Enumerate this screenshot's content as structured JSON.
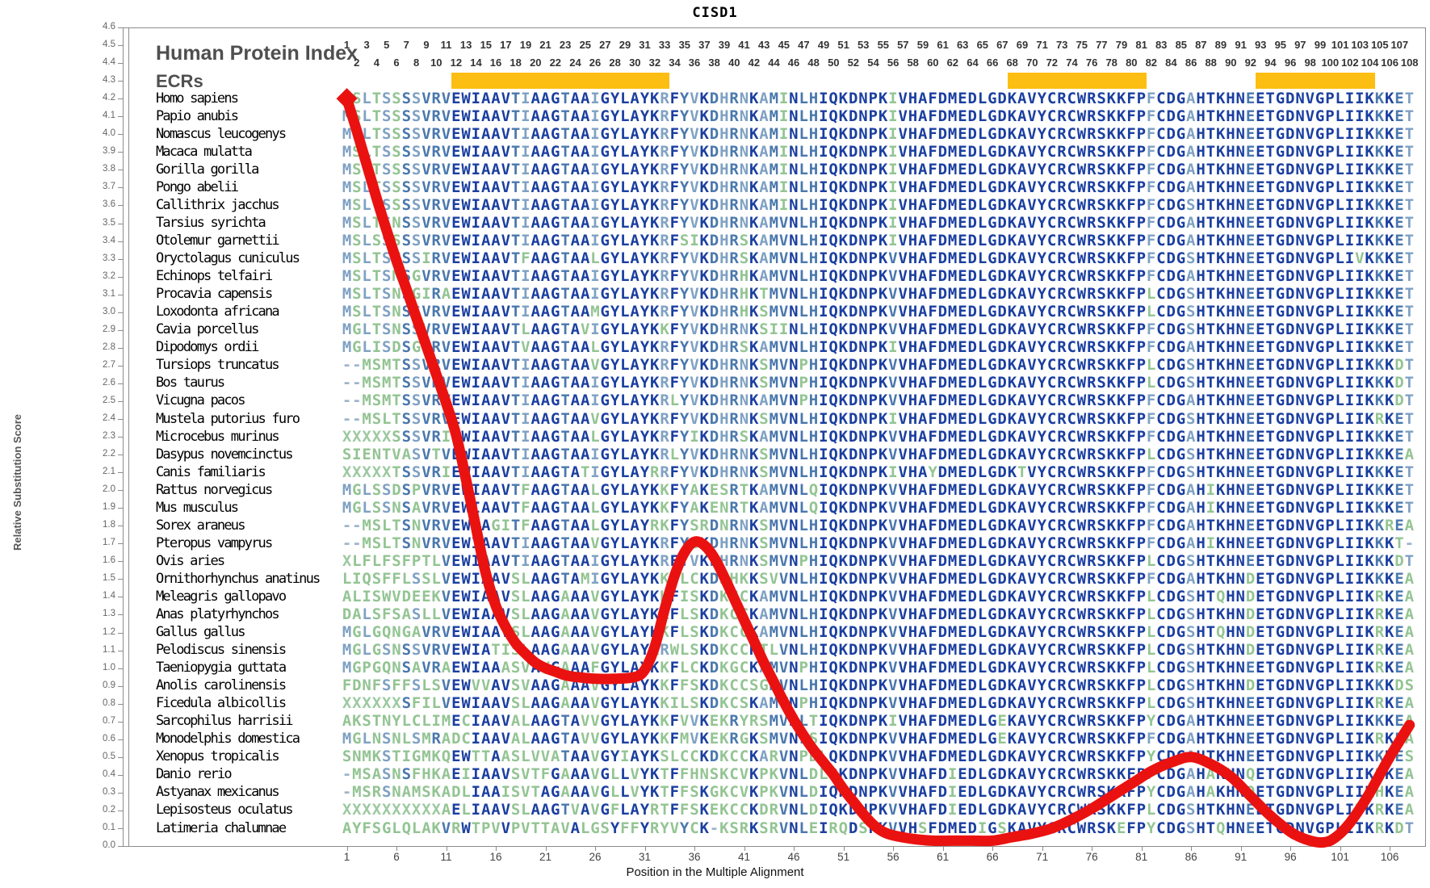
{
  "title": "CISD1",
  "header": {
    "human_protein_index": "Human Protein Index",
    "ecrs_label": "ECRs"
  },
  "y_axis": {
    "label": "Relative Substitution Score",
    "min": 0.0,
    "max": 4.6,
    "step": 0.1
  },
  "x_axis": {
    "label": "Position in the Multiple Alignment",
    "ticks": [
      1,
      6,
      11,
      16,
      21,
      26,
      31,
      36,
      41,
      46,
      51,
      56,
      61,
      66,
      71,
      76,
      81,
      86,
      91,
      96,
      101,
      106
    ]
  },
  "top_ruler": {
    "start": 1,
    "end": 108
  },
  "ecr_regions": [
    {
      "start": 12,
      "end": 33
    },
    {
      "start": 68,
      "end": 81
    },
    {
      "start": 93,
      "end": 104
    }
  ],
  "colors": {
    "ecr_bar": "#FCBE12",
    "curve": "#EA1210",
    "conserved_high": "#1B3FA0",
    "conserved_mid": "#4A78AD",
    "conserved_low": "#7FA1C3",
    "variable": "#93C493",
    "unknown_x": "#9CC9A0",
    "gap": "#9DB4C9",
    "frame": "#8C8C8C"
  },
  "alignment": {
    "length": 108,
    "species": [
      {
        "name": "Homo sapiens",
        "score": 4.2,
        "sequence": "MSLTSSSSVRVEWIAAVTIAAGTAAIGYLAYKRFYVKDHRNKAMINLHIQKDNPKIVHAFDMEDLGDKAVYCRCWRSKKFPFCDGAHTKHNEETGDNVGPLIIKKKET"
      },
      {
        "name": "Papio anubis",
        "score": 4.1,
        "sequence": "MSLTSSSSVRVEWIAAVTIAAGTAAIGYLAYKRFYVKDHRNKAMINLHIQKDNPKIVHAFDMEDLGDKAVYCRCWRSKKFPFCDGAHTKHNEETGDNVGPLIIKKKET"
      },
      {
        "name": "Nomascus leucogenys",
        "score": 4.0,
        "sequence": "MSLTSSSSVRVEWIAAVTIAAGTAAIGYLAYKRFYVKDHRNKAMINLHIQKDNPKIVHAFDMEDLGDKAVYCRCWRSKKFPFCDGAHTKHNEETGDNVGPLIIKKKET"
      },
      {
        "name": "Macaca mulatta",
        "score": 3.9,
        "sequence": "MSLTSSSSVRVEWIAAVTIAAGTAAIGYLAYKRFYVKDHRNKAMINLHIQKDNPKIVHAFDMEDLGDKAVYCRCWRSKKFPFCDGAHTKHNEETGDNVGPLIIKKKET"
      },
      {
        "name": "Gorilla gorilla",
        "score": 3.8,
        "sequence": "MSLTSSSSVRVEWIAAVTIAAGTAAIGYLAYKRFYVKDHRNKAMINLHIQKDNPKIVHAFDMEDLGDKAVYCRCWRSKKFPFCDGAHTKHNEETGDNVGPLIIKKKET"
      },
      {
        "name": "Pongo abelii",
        "score": 3.7,
        "sequence": "MSLTSSSSVRVEWIAAVTIAAGTAAIGYLAYKRFYVKDHRNKAMINLHIQKDNPKIVHAFDMEDLGDKAVYCRCWRSKKFPFCDGAHTKHNEETGDNVGPLIIKKKET"
      },
      {
        "name": "Callithrix jacchus",
        "score": 3.6,
        "sequence": "MSLTSSSSVRVEWIAAVTIAAGTAAIGYLAYKRFYVKDHRNKAMINLHIQKDNPKIVHAFDMEDLGDKAVYCRCWRSKKFPFCDGSHTKHNEETGDNVGPLIIKKKET"
      },
      {
        "name": "Tarsius syrichta",
        "score": 3.5,
        "sequence": "MSLTSNSSVRVEWIAAVTIAAGTAAIGYLAYKRFYVKDHRNKAMVNLHIQKDNPKIVHAFDMEDLGDKAVYCRCWRSKKFPFCDGAHTKHNEETGDNVGPLIIKKKET"
      },
      {
        "name": "Otolemur garnettii",
        "score": 3.4,
        "sequence": "MSLSSSSSVRVEWIAAVTIAAGTAAIGYLAYKRFSIKDHRSKAMVNLHIQKDNPKIVHAFDMEDLGDKAVYCRCWRSKKFPFCDGAHTKHNEETGDNVGPLIIKKKET"
      },
      {
        "name": "Oryctolagus cuniculus",
        "score": 3.3,
        "sequence": "MSLTSNSSIRVEWIAAVTFAAGTAALGYLAYKRFYVKDHRSKAMVNLHIQKDNPKVVHAFDMEDLGDKAVYCRCWRSKKFPFCDGSHTKHNEETGDNVGPLIVKKKET"
      },
      {
        "name": "Echinops telfairi",
        "score": 3.2,
        "sequence": "MSLTSNSGVRVEWIAAVTIAAGTAAIGYLAYKRFYVKDHRHKAMVNLHIQKDNPKVVHAFDMEDLGDKAVYCRCWRSKKFPFCDGAHTKHNEETGDNVGPLIIKKKET"
      },
      {
        "name": "Procavia capensis",
        "score": 3.1,
        "sequence": "MSLTSNSGIRAEWIAAVTIAAGTAAIGYLAYKRFYVKDHRHKTMVNLHIQKDNPKVVHAFDMEDLGDKAVYCRCWRSKKFPLCDGSHTKHNEETGDNVGPLIIKKKET"
      },
      {
        "name": "Loxodonta africana",
        "score": 3.0,
        "sequence": "MSLTSNSSVRVEWIAAVTIAAGTAAMGYLAYKRFYVKDHRHKSMVNLHIQKDNPKVVHAFDMEDLGDKAVYCRCWRSKKFPLCDGSHTKHNEETGDNVGPLIIKKKET"
      },
      {
        "name": "Cavia porcellus",
        "score": 2.9,
        "sequence": "MGLTSNSSVRVEWIAAVTLAAGTAVIGYLAYKKFYVKDHRNKSIINLHIQKDNPKVVHAFDMEDLGDKAVYCRCWRSKKFPFCDGSHTKHNEETGDNVGPLIIKKKET"
      },
      {
        "name": "Dipodomys ordii",
        "score": 2.8,
        "sequence": "MGLISDSGLRVEWIAAVTVAAGTAALGYLAYKRFYVKDHRSKAMVNLHIQKDNPKIVHAFDMEDLGDKAVYCRCWRSKKFPFCDGAHTKHNEETGDNVGPLIIKKKET"
      },
      {
        "name": "Tursiops truncatus",
        "score": 2.7,
        "sequence": "--MSMTSSVRVEWIAAVTIAAGTAAVGYLAYKRFYVKDHRNKSMVNPHIQKDNPKVVHAFDMEDLGDKAVYCRCWRSKKFPLCDGSHTKHNEETGDNVGPLIIKKKDT"
      },
      {
        "name": "Bos taurus",
        "score": 2.6,
        "sequence": "--MSMTSSVRVEWIAAVTIAAGTAAIGYLAYKRFYVKDHRNKSMVNPHIQKDNPKVVHAFDMEDLGDKAVYCRCWRSKKFPLCDGSHTKHNEETGDNVGPLIIKKKDT"
      },
      {
        "name": "Vicugna pacos",
        "score": 2.5,
        "sequence": "--MSMTSSVRVEWIAAVTIAAGTAAIGYLAYKRLYVKDHRNKAMVNPHIQKDNPKVVHAFDMEDLGDKAVYCRCWRSKKFPFCDGAHTKHNEETGDNVGPLIIKKKDT"
      },
      {
        "name": "Mustela putorius furo",
        "score": 2.4,
        "sequence": "--MSLTSSVRVEWIAAVTIAAGTAAVGYLAYKRFYVKDHRNKSMVNLHIQKDNPKIVHAFDMEDLGDKAVYCRCWRSKKFPFCDGSHTKHNEETGDNVGPLIIKRKET"
      },
      {
        "name": "Microcebus murinus",
        "score": 2.3,
        "sequence": "XXXXXSSSVRIEWIAAVTIAAGTAALGYLAYKRFYIKDHRSKAMVNLHIQKDNPKVVHAFDMEDLGDKAVYCRCWRSKKFPFCDGAHTKHNEETGDNVGPLIIKKKET"
      },
      {
        "name": "Dasypus novemcinctus",
        "score": 2.2,
        "sequence": "SIENTVASVTVEWIAAVTIAAGTAAIGYLAYKRLYVKDHRNKSMVNLHIQKDNPKVVHAFDMEDLGDKAVYCRCWRSKKFPLCDGSHTKHNEETGDNVGPLIIKKKEA"
      },
      {
        "name": "Canis familiaris",
        "score": 2.1,
        "sequence": "XXXXXTSSVRIEWIAAVTIAAGTATIGYLAYRRFYVKDHRNKSMVNLHIQKDNPKIVHAYDMEDLGDKTVYCRCWRSKKFPFCDGSHTKHNEETGDNVGPLIIKKKET"
      },
      {
        "name": "Rattus norvegicus",
        "score": 2.0,
        "sequence": "MGLSSDSPVRVEWIAAVTFAAGTAALGYLAYKKFYAKESRTKAMVNLQIQKDNPKVVHAFDMEDLGDKAVYCRCWRSKKFPFCDGAHIKHNEETGDNVGPLIIKKKET"
      },
      {
        "name": "Mus musculus",
        "score": 1.9,
        "sequence": "MGLSSNSAVRVEWIAAVTFAAGTAALGYLAYKKFYAKENRTKAMVNLQIQKDNPKVVHAFDMEDLGDKAVYCRCWRSKKFPFCDGAHIKHNEETGDNVGPLIIKKKET"
      },
      {
        "name": "Sorex araneus",
        "score": 1.8,
        "sequence": "--MSLTSNVRVEWIAGITFAAGTAALGYLAYRKFYSRDNRNKSMVNLHIQKDNPKVVHAFDMEDLGDKAVYCRCWRSKKFPFCDGAHTKHNEETGDNVGPLIIKKREA"
      },
      {
        "name": "Pteropus vampyrus",
        "score": 1.7,
        "sequence": "--MSLTSNVRVEWIAAVTIAAGTAAVGYLAYKRFYGKDHRNKSMVNLHIQKDNPKVVHAFDMEDLGDKAVYCRCWRSKKFPFCDGAHIKHNEETGDNVGPLIIKKKT-"
      },
      {
        "name": "Ovis aries",
        "score": 1.6,
        "sequence": "XLFLFSFPTLVEWIAAVTIAAGTAAIGYLAYKRFYVKDHRNKSMVNPHIQKDNPKVVHAFDMEDLGDKAVYCRCWRSKKFPLCDGSHTKHNEETGDNVGPLIIKKKDT"
      },
      {
        "name": "Ornithorhynchus anatinus",
        "score": 1.5,
        "sequence": "LIQSFFLSSLVEWIAAVSLAAGTAMIGYLAYKKFLCKDKHKKSVVNLHIQKDNPKVVHAFDMEDLGDKAVYCRCWRSKKFPFCDGAHTKHNDETGDNVGPLIIKKKEA"
      },
      {
        "name": "Meleagris gallopavo",
        "score": 1.4,
        "sequence": "ALISWVDEEKVEWIAAVSLAAGAAAVGYLAYKKFISKDKCCKAMVNLHIQKDNPKVVHAFDMEDLGDKAVYCRCWRSKKFPLCDGSHTQHNDETGDNVGPLIIKRKEA"
      },
      {
        "name": "Anas platyrhynchos",
        "score": 1.3,
        "sequence": "DALSFSASLLVEWIAAVSLAAGAAAVGYLAYKKFLSKDKCCKAMVNLHIQKDNPKVVHAFDMEDLGDKAVYCRCWRSKKFPLCDGSHTKHNDETGDNVGPLIIKRKEA"
      },
      {
        "name": "Gallus gallus",
        "score": 1.2,
        "sequence": "MGLGQNGAVRVEWIAAVSLAAGAAAVGYLAYKKFLSKDKCCKAMVNLHIQKDNPKVVHAFDMEDLGDKAVYCRCWRSKKFPLCDGSHTQHNDETGDNVGPLIIKRKEA"
      },
      {
        "name": "Pelodiscus sinensis",
        "score": 1.1,
        "sequence": "MGLGSNSSVRVEWIATISLAAGAAAVGYLAYRRWLSKDKCCKTLVNLHIQKDNPKVVHAFDMEDLGDKAVYCRCWRSKKFPLCDGSHTKHNDETGDNVGPLIIKRKEA"
      },
      {
        "name": "Taeniopygia guttata",
        "score": 1.0,
        "sequence": "MGPGQNSAVRAEWIAAASVAVGAAAFGYLAYKKFLCKDKGCKAMVNPHIQKDNPKVVHAFDMEDLGDKAVYCRCWRSKKFPLCDGSHTKHNEETGDNVGPLIIKRKEA"
      },
      {
        "name": "Anolis carolinensis",
        "score": 0.9,
        "sequence": "FDNFSFFSLSVEWVVAVSVAAGAAAVGYLAYKKFFSKDKCCSGMVNLHIQKDNPKVVHAFDMEDLGDKAVYCRCWRSKKFPLCDGSHTKHNDETGDNVGPLIIKKKDS"
      },
      {
        "name": "Ficedula albicollis",
        "score": 0.8,
        "sequence": "XXXXXXSFILVEWIAAVSLAAGAAAVGYLAYKKILSKDKCSKAMVNPHIQKDNPKVVHAFDMEDLGDKAVYCRCWRSKKFPLCDGSHTKHNEETGDNVGPLIIKRKEA"
      },
      {
        "name": "Sarcophilus harrisii",
        "score": 0.7,
        "sequence": "AKSTNYLCLIMECIAAVALAAGTAVVGYLAYKKFVVKEKRYRSMVNLTIQKDNPKIVHAFDMEDLGEKAVYCRCWRSKKFPYCDGAHTKHNEETGDNVGPLIIKKKEA"
      },
      {
        "name": "Monodelphis domestica",
        "score": 0.6,
        "sequence": "MGLNSNLSMRADCIAAVALAAGTAVVGYLAYKKFMVKEKRGKSMVNLSIQKDNPKVVHAFDMEDLGEKAVYCRCWRSKKFPFCDGAHTKHNEETGDNVGPLIIKRKEA"
      },
      {
        "name": "Xenopus tropicalis",
        "score": 0.5,
        "sequence": "SNMKSTIGMKQEWTTAASLVVATAAVGYIAYKSLCCKDKCCKARVNPDLQKDNPKVVHAFDMEDLGDKAVYCRCWRSKKFPYCDGAHTKHNEETGDNVGPLIIKKKES"
      },
      {
        "name": "Danio rerio",
        "score": 0.4,
        "sequence": "-MSASNSFHKAEIIAAVSVTFGAAAVGLLVYKTFFHNSKCVKPKVNLDLQKDNPKVVHAFDIEDLGDKAVYCRCWRSKKFPFCDGAHAKHNQETGDNVGPLIIKRKEA"
      },
      {
        "name": "Astyanax mexicanus",
        "score": 0.3,
        "sequence": "-MSRSNAMSKADLIAAISVTAGAAAVGLLVYKTFFSKGKCVKPKVNLDIQKDNPKVVHAFDIEDLGDKAVYCRCWRSKKFPYCDGAHAKHNQETGDNVGPLIIKHKEA"
      },
      {
        "name": "Lepisosteus oculatus",
        "score": 0.2,
        "sequence": "XXXXXXXXXXAELIAAVSLAAGTVAVGFLAYRTFFSKEKCCKDRVNLDIQKDNPKVVHAFDIEDLGDKAVYCRCWRSKKFPLCDGSHTKHNEETGDNVGPLIVKRKEA"
      },
      {
        "name": "Latimeria chalumnae",
        "score": 0.1,
        "sequence": "AYFSGLQLAKVRWTPVVPVTTAVALGSYFFYRYVYCK-KSRKSRVNLEIRQDSPKVVHSFDMEDIGSKAVYCRCWRSKEFPYCDGSHTQHNEETGDNVGPLIIKRKDT"
      }
    ]
  },
  "chart_data": {
    "type": "line",
    "title": "CISD1",
    "xlabel": "Position in the Multiple Alignment",
    "ylabel": "Relative Substitution Score",
    "xlim": [
      1,
      108
    ],
    "ylim": [
      0,
      4.6
    ],
    "grid": false,
    "legend": "none",
    "series_name": "Relative substitution score curve",
    "line_color": "#EA1210",
    "x": [
      1,
      2,
      3,
      4,
      5,
      6,
      7,
      8,
      9,
      10,
      11,
      12,
      13,
      14,
      15,
      16,
      17,
      18,
      19,
      20,
      21,
      22,
      23,
      24,
      26,
      28,
      30,
      31,
      32,
      33,
      34,
      35,
      36,
      37,
      38,
      39,
      40,
      41,
      42,
      43,
      44,
      45,
      46,
      47,
      48,
      49,
      50,
      51,
      52,
      53,
      54,
      55,
      56,
      58,
      60,
      62,
      64,
      66,
      68,
      70,
      72,
      74,
      76,
      78,
      80,
      82,
      84,
      86,
      88,
      90,
      92,
      94,
      96,
      97,
      98,
      99,
      100,
      101,
      102,
      103,
      104,
      105,
      106,
      107,
      108
    ],
    "y": [
      4.2,
      4.02,
      3.83,
      3.64,
      3.46,
      3.29,
      3.13,
      2.97,
      2.81,
      2.65,
      2.49,
      2.31,
      2.06,
      1.79,
      1.53,
      1.35,
      1.23,
      1.14,
      1.08,
      1.03,
      1.0,
      0.98,
      0.96,
      0.95,
      0.94,
      0.94,
      0.95,
      0.99,
      1.12,
      1.33,
      1.52,
      1.65,
      1.71,
      1.69,
      1.62,
      1.51,
      1.39,
      1.27,
      1.15,
      1.03,
      0.92,
      0.81,
      0.71,
      0.62,
      0.54,
      0.47,
      0.4,
      0.32,
      0.25,
      0.18,
      0.12,
      0.08,
      0.06,
      0.04,
      0.03,
      0.03,
      0.03,
      0.03,
      0.05,
      0.07,
      0.1,
      0.15,
      0.21,
      0.28,
      0.35,
      0.42,
      0.47,
      0.5,
      0.46,
      0.39,
      0.28,
      0.17,
      0.08,
      0.05,
      0.03,
      0.02,
      0.03,
      0.07,
      0.13,
      0.21,
      0.3,
      0.4,
      0.5,
      0.59,
      0.68
    ]
  }
}
